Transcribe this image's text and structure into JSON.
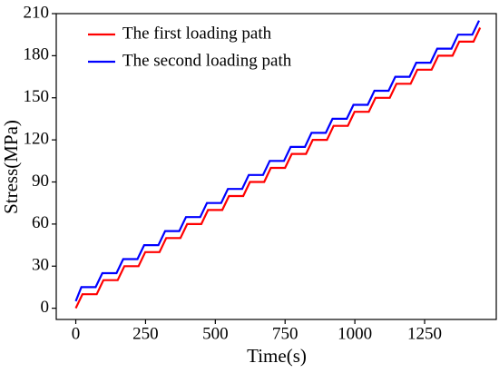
{
  "chart_data": {
    "type": "line",
    "xlabel": "Time(s)",
    "ylabel": "Stress(MPa)",
    "xlim": [
      -70,
      1510
    ],
    "xticks": [
      0,
      250,
      500,
      750,
      1000,
      1250
    ],
    "ylim": [
      -8,
      210
    ],
    "yticks": [
      0,
      30,
      60,
      90,
      120,
      150,
      180,
      210
    ],
    "legend": "upper left",
    "series": [
      {
        "name": "The first loading path",
        "color": "#ff0000",
        "x": [
          0,
          24,
          75,
          99,
          150,
          174,
          225,
          249,
          300,
          324,
          375,
          399,
          450,
          474,
          525,
          549,
          600,
          624,
          675,
          699,
          750,
          774,
          825,
          849,
          900,
          924,
          975,
          999,
          1050,
          1074,
          1125,
          1149,
          1200,
          1224,
          1275,
          1299,
          1350,
          1374,
          1425,
          1449
        ],
        "values": [
          0,
          10,
          10,
          20,
          20,
          30,
          30,
          40,
          40,
          50,
          50,
          60,
          60,
          70,
          70,
          80,
          80,
          90,
          90,
          100,
          100,
          110,
          110,
          120,
          120,
          130,
          130,
          140,
          140,
          150,
          150,
          160,
          160,
          170,
          170,
          180,
          180,
          190,
          190,
          200
        ]
      },
      {
        "name": "The second loading path",
        "color": "#0000ff",
        "x": [
          0,
          20,
          71,
          95,
          146,
          170,
          221,
          245,
          296,
          320,
          371,
          395,
          446,
          470,
          521,
          545,
          596,
          620,
          671,
          695,
          746,
          770,
          821,
          845,
          896,
          920,
          971,
          995,
          1046,
          1070,
          1121,
          1145,
          1196,
          1220,
          1271,
          1295,
          1346,
          1370,
          1421,
          1445
        ],
        "values": [
          5,
          15,
          15,
          25,
          25,
          35,
          35,
          45,
          45,
          55,
          55,
          65,
          65,
          75,
          75,
          85,
          85,
          95,
          95,
          105,
          105,
          115,
          115,
          125,
          125,
          135,
          135,
          145,
          145,
          155,
          155,
          165,
          165,
          175,
          175,
          185,
          185,
          195,
          195,
          205
        ]
      }
    ]
  }
}
